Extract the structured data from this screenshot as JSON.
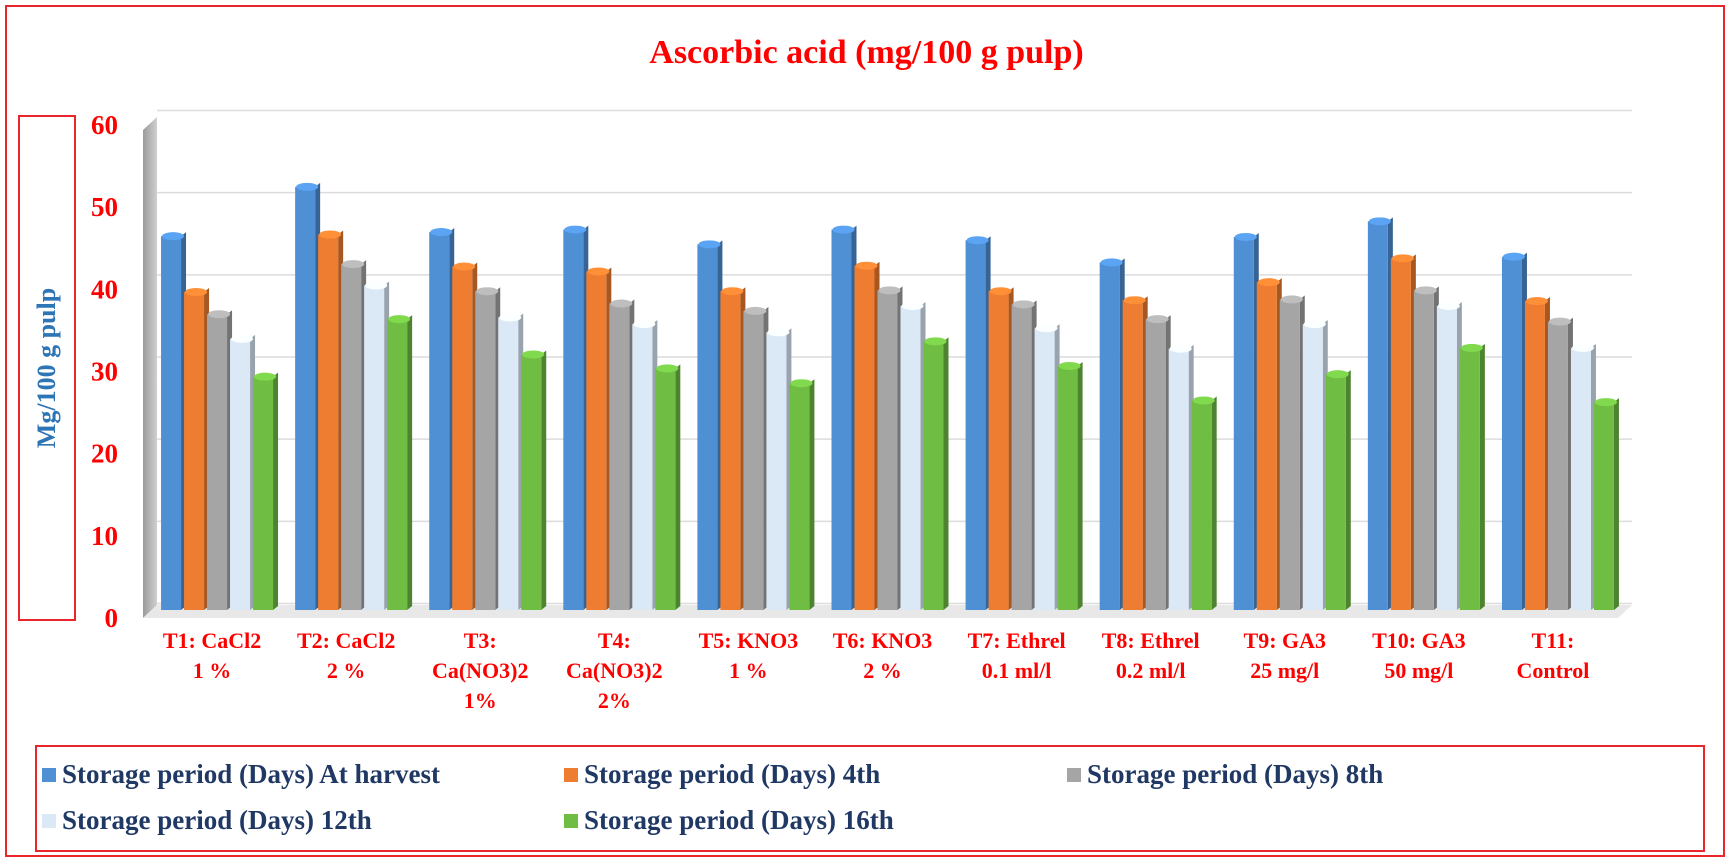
{
  "chart_data": {
    "type": "bar",
    "title": "Ascorbic acid (mg/100 g pulp)",
    "ylabel": "Mg/100 g pulp",
    "xlabel": "",
    "ylim": [
      0,
      60
    ],
    "yticks": [
      0,
      10,
      20,
      30,
      40,
      50,
      60
    ],
    "grid": true,
    "legend_position": "bottom",
    "categories": [
      [
        "T1: CaCl2",
        "1 %"
      ],
      [
        "T2: CaCl2",
        "2 %"
      ],
      [
        "T3:",
        "Ca(NO3)2",
        "1%"
      ],
      [
        "T4:",
        "Ca(NO3)2",
        "2%"
      ],
      [
        "T5: KNO3",
        "1 %"
      ],
      [
        "T6: KNO3",
        "2 %"
      ],
      [
        "T7: Ethrel",
        "0.1 ml/l"
      ],
      [
        "T8: Ethrel",
        "0.2 ml/l"
      ],
      [
        "T9: GA3",
        "25 mg/l"
      ],
      [
        "T10: GA3",
        "50 mg/l"
      ],
      [
        "T11:",
        "Control"
      ]
    ],
    "series": [
      {
        "name": "Storage period (Days) At harvest",
        "color": "#4f8fd4",
        "values": [
          45.5,
          51.5,
          46.0,
          46.3,
          44.5,
          46.3,
          45.0,
          42.3,
          45.4,
          47.3,
          43.0
        ]
      },
      {
        "name": "Storage period (Days) 4th",
        "color": "#ee7d31",
        "values": [
          38.7,
          45.7,
          41.8,
          41.2,
          38.8,
          41.9,
          38.8,
          37.7,
          39.9,
          42.8,
          37.6
        ]
      },
      {
        "name": "Storage period (Days) 8th",
        "color": "#a5a5a5",
        "values": [
          36.0,
          42.1,
          38.8,
          37.3,
          36.4,
          38.9,
          37.2,
          35.4,
          37.8,
          38.9,
          35.1
        ]
      },
      {
        "name": "Storage period (Days) 12th",
        "color": "#dbe9f7",
        "values": [
          33.0,
          39.5,
          35.6,
          34.8,
          33.8,
          37.0,
          34.3,
          31.8,
          34.8,
          37.0,
          31.9
        ]
      },
      {
        "name": "Storage period (Days) 16th",
        "color": "#70bd44",
        "values": [
          28.4,
          35.4,
          31.1,
          29.4,
          27.6,
          32.7,
          29.7,
          25.5,
          28.7,
          31.9,
          25.3
        ]
      }
    ]
  }
}
